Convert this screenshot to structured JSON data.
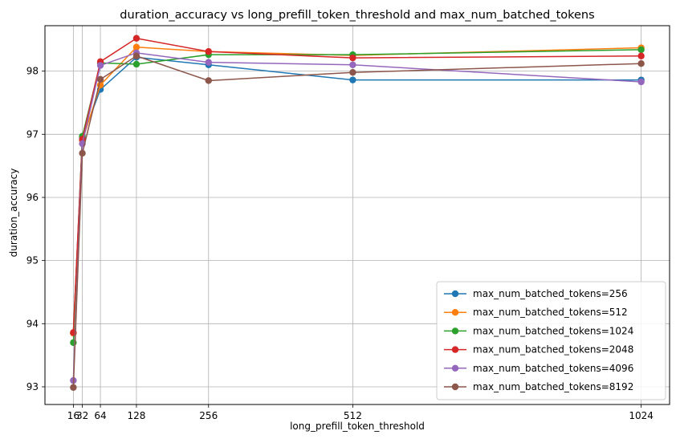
{
  "chart_data": {
    "type": "line",
    "title": "duration_accuracy vs long_prefill_token_threshold and max_num_batched_tokens",
    "xlabel": "long_prefill_token_threshold",
    "ylabel": "duration_accuracy",
    "x": [
      16,
      32,
      64,
      128,
      256,
      512,
      1024
    ],
    "xticks": [
      16,
      32,
      64,
      128,
      256,
      512,
      1024
    ],
    "xtick_labels": [
      "16",
      "32",
      "64",
      "128",
      "256",
      "512",
      "1024"
    ],
    "xlim": [
      -34.4,
      1074.4
    ],
    "ylim": [
      92.72,
      98.72
    ],
    "yticks": [
      93,
      94,
      95,
      96,
      97,
      98
    ],
    "ytick_labels": [
      "93",
      "94",
      "95",
      "96",
      "97",
      "98"
    ],
    "grid": true,
    "legend_position": "lower-right",
    "series": [
      {
        "name": "max_num_batched_tokens=256",
        "color": "#1f77b4",
        "values": [
          93.85,
          96.95,
          97.71,
          98.22,
          98.1,
          97.86,
          97.86
        ]
      },
      {
        "name": "max_num_batched_tokens=512",
        "color": "#ff7f0e",
        "values": [
          93.85,
          96.9,
          97.78,
          98.38,
          98.31,
          98.25,
          98.37
        ]
      },
      {
        "name": "max_num_batched_tokens=1024",
        "color": "#2ca02c",
        "values": [
          93.7,
          96.97,
          98.13,
          98.11,
          98.26,
          98.26,
          98.34
        ]
      },
      {
        "name": "max_num_batched_tokens=2048",
        "color": "#d62728",
        "values": [
          93.86,
          96.92,
          98.15,
          98.52,
          98.31,
          98.21,
          98.24
        ]
      },
      {
        "name": "max_num_batched_tokens=4096",
        "color": "#9467bd",
        "values": [
          93.1,
          96.85,
          98.09,
          98.29,
          98.14,
          98.1,
          97.83
        ]
      },
      {
        "name": "max_num_batched_tokens=8192",
        "color": "#8c564b",
        "values": [
          92.99,
          96.7,
          97.87,
          98.24,
          97.85,
          97.98,
          98.12
        ]
      }
    ]
  }
}
